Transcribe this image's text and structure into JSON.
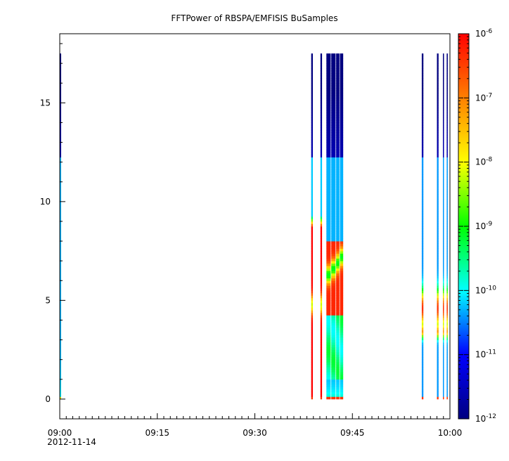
{
  "chart_data": {
    "type": "heatmap",
    "title": "FFTPower of RBSPA/EMFISIS  BuSamples",
    "xlabel": "",
    "ylabel": "",
    "x_start_date": "2012-11-14",
    "x_range": [
      "09:00",
      "10:00"
    ],
    "x_ticks": [
      "09:00",
      "09:15",
      "09:30",
      "09:45",
      "10:00"
    ],
    "y_range": [
      -1.0,
      18.5
    ],
    "y_ticks": [
      "0",
      "5",
      "10",
      "15"
    ],
    "colorbar": {
      "scale": "log",
      "range": [
        1e-12,
        1e-06
      ],
      "tick_base": "10",
      "tick_exponents": [
        "-12",
        "-11",
        "-10",
        "-9",
        "-8",
        "-7",
        "-6"
      ],
      "colormap": [
        "#000080",
        "#0000ff",
        "#00ffff",
        "#00ff00",
        "#ffff00",
        "#ff8000",
        "#ff0000"
      ]
    },
    "y_data_max": 17.5,
    "series": [
      {
        "time_range": [
          "09:00:00",
          "09:00:13"
        ],
        "profile": "quiet"
      },
      {
        "time_range": [
          "09:38:40",
          "09:38:55"
        ],
        "profile": "event"
      },
      {
        "time_range": [
          "09:40:05",
          "09:40:20"
        ],
        "profile": "event"
      },
      {
        "time_range": [
          "09:41:00",
          "09:41:40"
        ],
        "profile": "dense"
      },
      {
        "time_range": [
          "09:41:45",
          "09:42:25"
        ],
        "profile": "dense"
      },
      {
        "time_range": [
          "09:42:30",
          "09:43:00"
        ],
        "profile": "dense"
      },
      {
        "time_range": [
          "09:43:05",
          "09:43:35"
        ],
        "profile": "dense"
      },
      {
        "time_range": [
          "09:55:40",
          "09:55:55"
        ],
        "profile": "spike"
      },
      {
        "time_range": [
          "09:58:00",
          "09:58:15"
        ],
        "profile": "spike"
      },
      {
        "time_range": [
          "09:58:55",
          "09:59:05"
        ],
        "profile": "spike"
      },
      {
        "time_range": [
          "09:59:30",
          "09:59:40"
        ],
        "profile": "spike"
      }
    ]
  }
}
